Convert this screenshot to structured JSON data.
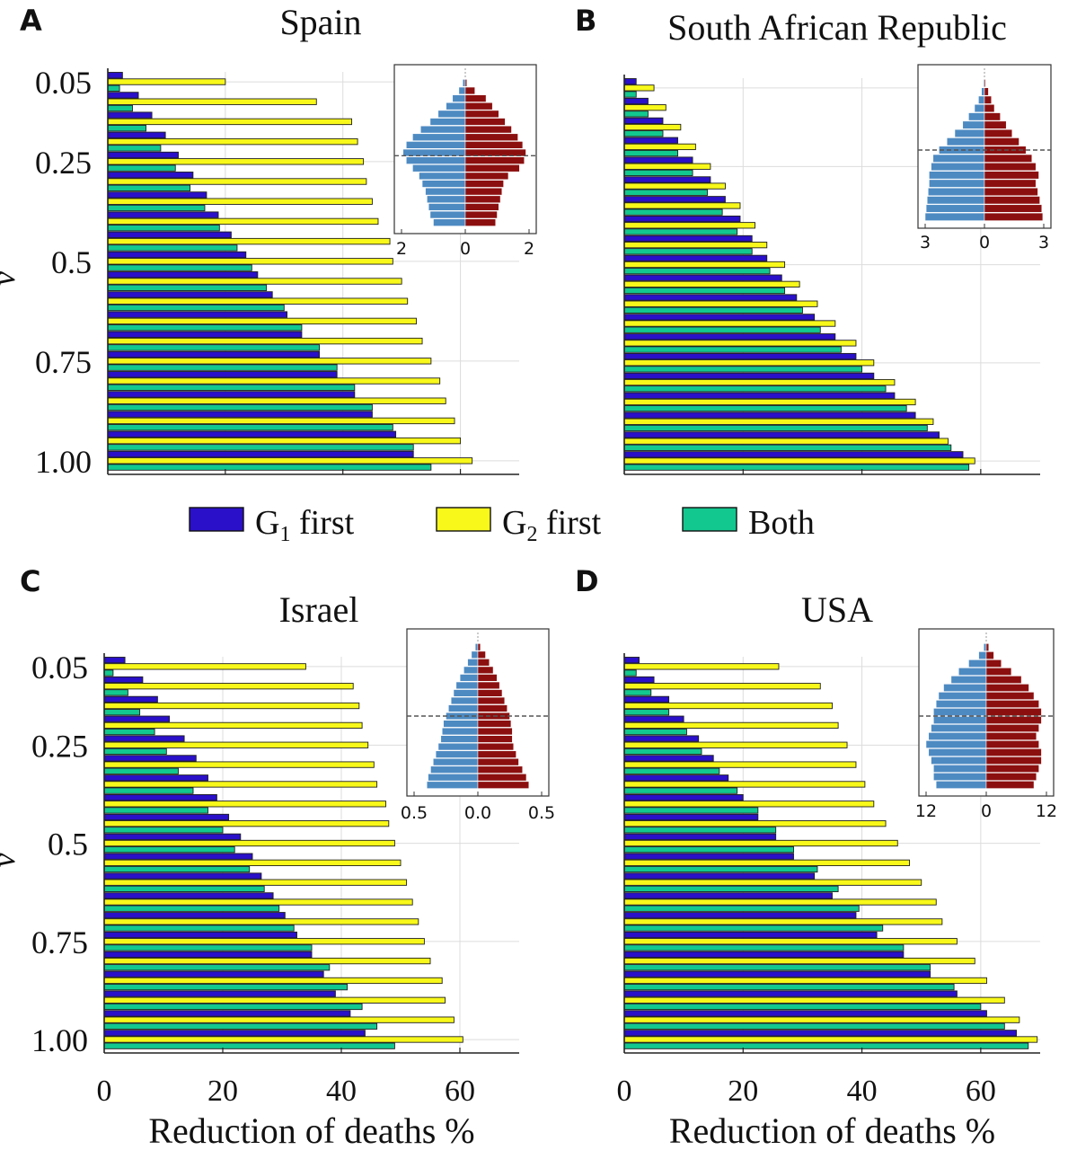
{
  "legend": [
    {
      "label": "G",
      "sub": "1",
      "rest": " first",
      "color": "#2a10c8"
    },
    {
      "label": "G",
      "sub": "2",
      "rest": " first",
      "color": "#f8f81a"
    },
    {
      "label": "Both",
      "sub": "",
      "rest": "",
      "color": "#12c88f"
    }
  ],
  "bar_stroke": "#202020",
  "pyramid_colors": {
    "left": "#4d8ac2",
    "right": "#8c0f0f"
  },
  "chart_data": [
    {
      "type": "bar",
      "orientation": "horizontal",
      "panel_letter": "A",
      "title": "Spain",
      "xlabel": "",
      "ylabel": "ν",
      "xlim": [
        0,
        70
      ],
      "xticks": [],
      "yticks": [
        "0.05",
        "0.25",
        "0.5",
        "0.75",
        "1.00"
      ],
      "categories": [
        0.05,
        0.1,
        0.15,
        0.2,
        0.25,
        0.3,
        0.35,
        0.4,
        0.45,
        0.5,
        0.55,
        0.6,
        0.65,
        0.7,
        0.75,
        0.8,
        0.85,
        0.9,
        0.95,
        1.0
      ],
      "series": [
        {
          "name": "G1 first",
          "values": [
            2.5,
            5.2,
            7.5,
            9.8,
            12,
            14.5,
            16.8,
            18.8,
            21,
            23.5,
            25.5,
            28,
            30.5,
            33,
            36,
            39,
            42,
            45,
            49,
            52
          ]
        },
        {
          "name": "G2 first",
          "values": [
            20,
            35.5,
            41.5,
            42.5,
            43.5,
            44,
            45,
            46,
            48,
            48.5,
            50,
            51,
            52.5,
            53.5,
            55,
            56.5,
            57.5,
            59,
            60,
            62
          ]
        },
        {
          "name": "Both",
          "values": [
            2,
            4.2,
            6.5,
            9,
            11.5,
            14,
            16.5,
            19,
            22,
            24.5,
            27,
            30,
            33,
            36,
            39,
            42,
            45,
            48.5,
            52,
            55
          ]
        }
      ],
      "inset": {
        "xticks": [
          "2",
          "0",
          "2"
        ],
        "xlim": [
          -2,
          2
        ],
        "left": [
          0.08,
          0.2,
          0.4,
          0.6,
          0.85,
          1.1,
          1.4,
          1.65,
          1.85,
          1.95,
          1.85,
          1.65,
          1.45,
          1.35,
          1.25,
          1.2,
          1.15,
          1.1,
          1.0
        ],
        "right": [
          0.05,
          0.3,
          0.65,
          0.85,
          1.05,
          1.25,
          1.45,
          1.65,
          1.8,
          1.9,
          1.85,
          1.7,
          1.35,
          1.2,
          1.15,
          1.1,
          1.05,
          1.0,
          0.95
        ],
        "dashed_level": 0.52
      }
    },
    {
      "type": "bar",
      "orientation": "horizontal",
      "panel_letter": "B",
      "title": "South African Republic",
      "xlabel": "",
      "ylabel": "",
      "xlim": [
        0,
        70
      ],
      "xticks": [],
      "yticks": [],
      "categories": [
        0.05,
        0.1,
        0.15,
        0.2,
        0.25,
        0.3,
        0.35,
        0.4,
        0.45,
        0.5,
        0.55,
        0.6,
        0.65,
        0.7,
        0.75,
        0.8,
        0.85,
        0.9,
        0.95,
        1.0
      ],
      "series": [
        {
          "name": "G1 first",
          "values": [
            2,
            4,
            6.5,
            9,
            11.5,
            14.5,
            17,
            19.5,
            21.5,
            24,
            26.5,
            29,
            32,
            35.5,
            39,
            42,
            45.5,
            49,
            53,
            57
          ]
        },
        {
          "name": "G2 first",
          "values": [
            5,
            7,
            9.5,
            12,
            14.5,
            17,
            19.5,
            22,
            24,
            27,
            29.5,
            32.5,
            35.5,
            39,
            42,
            45.5,
            49,
            52,
            54.5,
            59
          ]
        },
        {
          "name": "Both",
          "values": [
            2,
            4,
            6.5,
            9,
            11.5,
            14,
            16.5,
            19,
            21.5,
            24.5,
            27,
            30,
            33,
            36.5,
            40,
            44,
            47.5,
            51,
            55,
            58
          ]
        }
      ],
      "inset": {
        "xticks": [
          "3",
          "0",
          "3"
        ],
        "xlim": [
          -3,
          3
        ],
        "left": [
          0.05,
          0.15,
          0.3,
          0.5,
          0.8,
          1.1,
          1.5,
          1.9,
          2.3,
          2.6,
          2.7,
          2.8,
          2.8,
          2.85,
          2.9,
          2.95,
          3.0
        ],
        "right": [
          0.05,
          0.2,
          0.35,
          0.5,
          0.8,
          1.1,
          1.4,
          1.75,
          2.1,
          2.4,
          2.6,
          2.75,
          2.6,
          2.7,
          2.8,
          2.9,
          2.95
        ],
        "dashed_level": 0.5
      }
    },
    {
      "type": "bar",
      "orientation": "horizontal",
      "panel_letter": "C",
      "title": "Israel",
      "xlabel": "Reduction of deaths %",
      "ylabel": "ν",
      "xlim": [
        0,
        70
      ],
      "xticks": [
        "0",
        "20",
        "40",
        "60"
      ],
      "yticks": [
        "0.05",
        "0.25",
        "0.5",
        "0.75",
        "1.00"
      ],
      "categories": [
        0.05,
        0.1,
        0.15,
        0.2,
        0.25,
        0.3,
        0.35,
        0.4,
        0.45,
        0.5,
        0.55,
        0.6,
        0.65,
        0.7,
        0.75,
        0.8,
        0.85,
        0.9,
        0.95,
        1.0
      ],
      "series": [
        {
          "name": "G1 first",
          "values": [
            3.5,
            6.5,
            9,
            11,
            13.5,
            15.5,
            17.5,
            19,
            21,
            23,
            25,
            26.5,
            28.5,
            30.5,
            32.5,
            35,
            37,
            39,
            41.5,
            44
          ]
        },
        {
          "name": "G2 first",
          "values": [
            34,
            42,
            43,
            43.5,
            44.5,
            45.5,
            46,
            47.5,
            48,
            49,
            50,
            51,
            52,
            53,
            54,
            55,
            57,
            57.5,
            59,
            60.5
          ]
        },
        {
          "name": "Both",
          "values": [
            1.5,
            4,
            6,
            8.5,
            10.5,
            12.5,
            15,
            17.5,
            20,
            22,
            24.5,
            27,
            29.5,
            32,
            35,
            38,
            41,
            43.5,
            46,
            49
          ]
        }
      ],
      "inset": {
        "xticks": [
          "0.5",
          "0.0",
          "0.5"
        ],
        "xlim": [
          -0.5,
          0.5
        ],
        "left": [
          0.02,
          0.05,
          0.08,
          0.11,
          0.14,
          0.17,
          0.19,
          0.21,
          0.23,
          0.25,
          0.27,
          0.28,
          0.29,
          0.31,
          0.33,
          0.35,
          0.37,
          0.39,
          0.4
        ],
        "right": [
          0.02,
          0.06,
          0.09,
          0.12,
          0.15,
          0.17,
          0.19,
          0.21,
          0.23,
          0.25,
          0.26,
          0.27,
          0.27,
          0.28,
          0.3,
          0.32,
          0.35,
          0.38,
          0.4
        ],
        "dashed_level": 0.5
      }
    },
    {
      "type": "bar",
      "orientation": "horizontal",
      "panel_letter": "D",
      "title": "USA",
      "xlabel": "Reduction of deaths %",
      "ylabel": "",
      "xlim": [
        0,
        70
      ],
      "xticks": [
        "0",
        "20",
        "40",
        "60"
      ],
      "yticks": [],
      "categories": [
        0.05,
        0.1,
        0.15,
        0.2,
        0.25,
        0.3,
        0.35,
        0.4,
        0.45,
        0.5,
        0.55,
        0.6,
        0.65,
        0.7,
        0.75,
        0.8,
        0.85,
        0.9,
        0.95,
        1.0
      ],
      "series": [
        {
          "name": "G1 first",
          "values": [
            2.5,
            5,
            7.5,
            10,
            12.5,
            15,
            17.5,
            20,
            22.5,
            25.5,
            28.5,
            32,
            35,
            39,
            42.5,
            47,
            51.5,
            56,
            61,
            66
          ]
        },
        {
          "name": "G2 first",
          "values": [
            26,
            33,
            35,
            36,
            37.5,
            39,
            40.5,
            42,
            44,
            46,
            48,
            50,
            52.5,
            53.5,
            56,
            59,
            61,
            64,
            66.5,
            69.5
          ]
        },
        {
          "name": "Both",
          "values": [
            2,
            4.5,
            7.5,
            10.5,
            13,
            16,
            19,
            22.5,
            25.5,
            28.5,
            32.5,
            36,
            39.5,
            43.5,
            47,
            51.5,
            55.5,
            60,
            64,
            68
          ]
        }
      ],
      "inset": {
        "xticks": [
          "12",
          "0",
          "12"
        ],
        "xlim": [
          -12,
          12
        ],
        "left": [
          0.5,
          1.5,
          3.5,
          5.5,
          7,
          8.5,
          9.5,
          10,
          10.5,
          10.5,
          11,
          11.5,
          12,
          11.5,
          11,
          10.5,
          10.5,
          10
        ],
        "right": [
          0.5,
          1.5,
          3,
          5,
          7,
          8.5,
          9.5,
          10.5,
          11,
          11,
          10.5,
          10,
          10.5,
          11,
          11,
          10.5,
          10,
          9.5
        ],
        "dashed_level": 0.5
      }
    }
  ]
}
